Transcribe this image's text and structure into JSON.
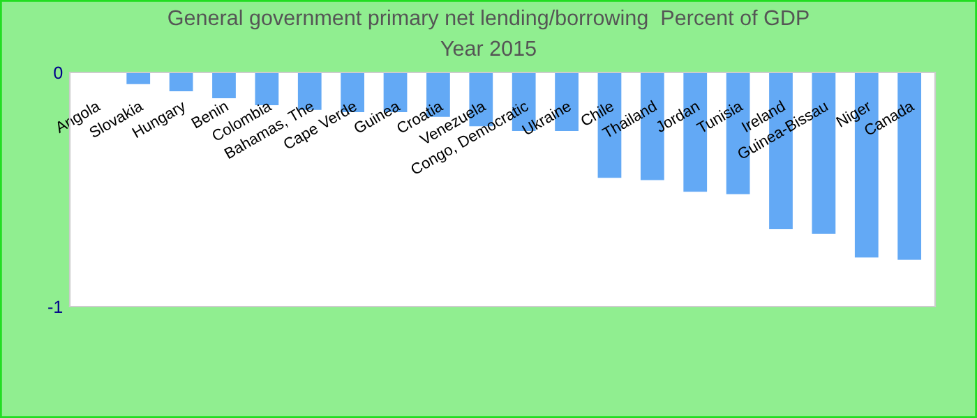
{
  "chart_data": {
    "type": "bar",
    "title": "General government primary net lending/borrowing  Percent of GDP",
    "subtitle": "Year 2015",
    "categories": [
      "Angola",
      "Slovakia",
      "Hungary",
      "Benin",
      "Colombia",
      "Bahamas, The",
      "Cape Verde",
      "Guinea",
      "Croatia",
      "Venezuela",
      "Congo, Democratic",
      "Ukraine",
      "Chile",
      "Thailand",
      "Jordan",
      "Tunisia",
      "Ireland",
      "Guinea-Bissau",
      "Niger",
      "Canada"
    ],
    "values": [
      0,
      -0.05,
      -0.08,
      -0.11,
      -0.14,
      -0.16,
      -0.17,
      -0.17,
      -0.19,
      -0.23,
      -0.25,
      -0.25,
      -0.45,
      -0.46,
      -0.51,
      -0.52,
      -0.67,
      -0.69,
      -0.79,
      -0.8
    ],
    "color": "#63a9f5",
    "ylim": [
      -1,
      0
    ],
    "yticks": [
      0,
      -1
    ],
    "grid": false,
    "legend": false
  }
}
